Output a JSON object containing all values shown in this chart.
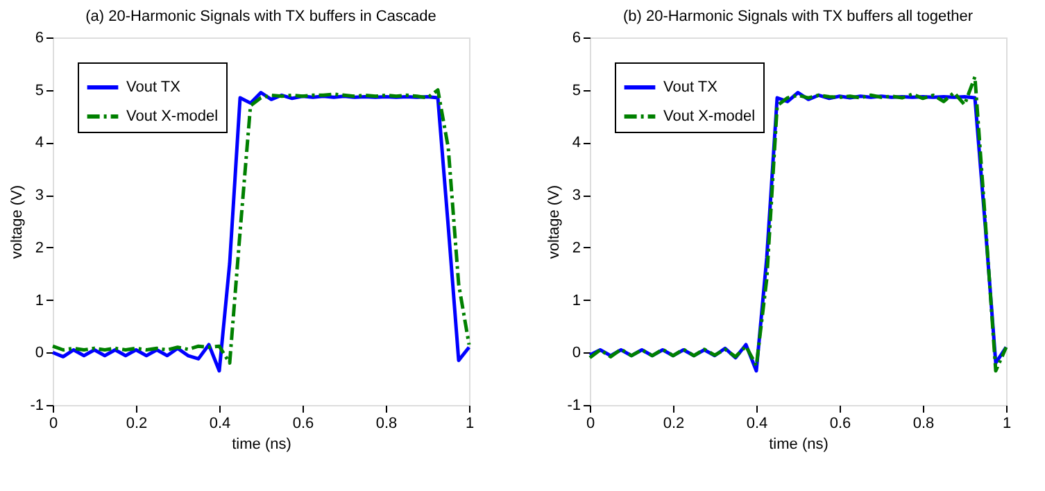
{
  "chart_data": [
    {
      "type": "line",
      "title": "(a) 20-Harmonic Signals with TX buffers in Cascade",
      "xlabel": "time (ns)",
      "ylabel": "voltage (V)",
      "x": [
        0,
        0.025,
        0.05,
        0.075,
        0.1,
        0.125,
        0.15,
        0.175,
        0.2,
        0.225,
        0.25,
        0.275,
        0.3,
        0.325,
        0.35,
        0.375,
        0.4,
        0.425,
        0.45,
        0.475,
        0.5,
        0.525,
        0.55,
        0.575,
        0.6,
        0.625,
        0.65,
        0.675,
        0.7,
        0.725,
        0.75,
        0.775,
        0.8,
        0.825,
        0.85,
        0.875,
        0.9,
        0.925,
        0.95,
        0.975,
        1
      ],
      "xlim": [
        0,
        1
      ],
      "xticks": [
        0,
        0.2,
        0.4,
        0.6,
        0.8,
        1
      ],
      "ylim": [
        -1,
        6
      ],
      "yticks": [
        -1,
        0,
        1,
        2,
        3,
        4,
        5,
        6
      ],
      "grid": false,
      "legend": "top left",
      "marker": "none",
      "series": [
        {
          "name": "Vout TX",
          "color": "#0000ff",
          "line_style": "solid",
          "values": [
            0.0,
            -0.08,
            0.05,
            -0.06,
            0.05,
            -0.06,
            0.05,
            -0.06,
            0.05,
            -0.06,
            0.05,
            -0.06,
            0.08,
            -0.06,
            -0.12,
            0.15,
            -0.35,
            1.7,
            4.85,
            4.75,
            4.95,
            4.82,
            4.9,
            4.84,
            4.88,
            4.86,
            4.88,
            4.86,
            4.88,
            4.86,
            4.87,
            4.86,
            4.87,
            4.86,
            4.87,
            4.86,
            4.87,
            4.85,
            2.4,
            -0.15,
            0.1
          ]
        },
        {
          "name": "Vout X-model",
          "color": "#008000",
          "line_style": "dashdot",
          "values": [
            0.12,
            0.05,
            0.08,
            0.05,
            0.08,
            0.05,
            0.08,
            0.05,
            0.08,
            0.05,
            0.08,
            0.05,
            0.1,
            0.06,
            0.12,
            0.1,
            0.12,
            -0.2,
            2.3,
            4.7,
            4.85,
            4.9,
            4.88,
            4.9,
            4.88,
            4.9,
            4.9,
            4.92,
            4.9,
            4.88,
            4.9,
            4.88,
            4.9,
            4.88,
            4.9,
            4.88,
            4.85,
            5.0,
            3.9,
            1.3,
            0.15
          ]
        }
      ]
    },
    {
      "type": "line",
      "title": "(b) 20-Harmonic Signals with TX buffers all together",
      "xlabel": "time (ns)",
      "ylabel": "voltage (V)",
      "x": [
        0,
        0.025,
        0.05,
        0.075,
        0.1,
        0.125,
        0.15,
        0.175,
        0.2,
        0.225,
        0.25,
        0.275,
        0.3,
        0.325,
        0.35,
        0.375,
        0.4,
        0.425,
        0.45,
        0.475,
        0.5,
        0.525,
        0.55,
        0.575,
        0.6,
        0.625,
        0.65,
        0.675,
        0.7,
        0.725,
        0.75,
        0.775,
        0.8,
        0.825,
        0.85,
        0.875,
        0.9,
        0.925,
        0.95,
        0.975,
        1
      ],
      "xlim": [
        0,
        1
      ],
      "xticks": [
        0,
        0.2,
        0.4,
        0.6,
        0.8,
        1
      ],
      "ylim": [
        -1,
        6
      ],
      "yticks": [
        -1,
        0,
        1,
        2,
        3,
        4,
        5,
        6
      ],
      "grid": false,
      "legend": "top left",
      "marker": "none",
      "series": [
        {
          "name": "Vout TX",
          "color": "#0000ff",
          "line_style": "solid",
          "values": [
            -0.05,
            0.05,
            -0.06,
            0.05,
            -0.06,
            0.05,
            -0.06,
            0.05,
            -0.06,
            0.05,
            -0.06,
            0.05,
            -0.06,
            0.08,
            -0.1,
            0.15,
            -0.35,
            1.8,
            4.85,
            4.78,
            4.95,
            4.82,
            4.9,
            4.84,
            4.88,
            4.85,
            4.88,
            4.86,
            4.88,
            4.86,
            4.87,
            4.86,
            4.87,
            4.86,
            4.87,
            4.86,
            4.87,
            4.85,
            2.4,
            -0.2,
            0.1
          ]
        },
        {
          "name": "Vout X-model",
          "color": "#008000",
          "line_style": "dashdot",
          "values": [
            -0.1,
            0.05,
            -0.08,
            0.06,
            -0.06,
            0.05,
            -0.06,
            0.06,
            -0.06,
            0.06,
            -0.06,
            0.06,
            -0.05,
            0.06,
            -0.08,
            0.12,
            -0.25,
            1.4,
            4.7,
            4.85,
            4.9,
            4.85,
            4.9,
            4.87,
            4.86,
            4.88,
            4.85,
            4.9,
            4.86,
            4.88,
            4.85,
            4.92,
            4.84,
            4.9,
            4.78,
            4.95,
            4.72,
            5.25,
            2.5,
            -0.35,
            0.1
          ]
        }
      ]
    }
  ]
}
